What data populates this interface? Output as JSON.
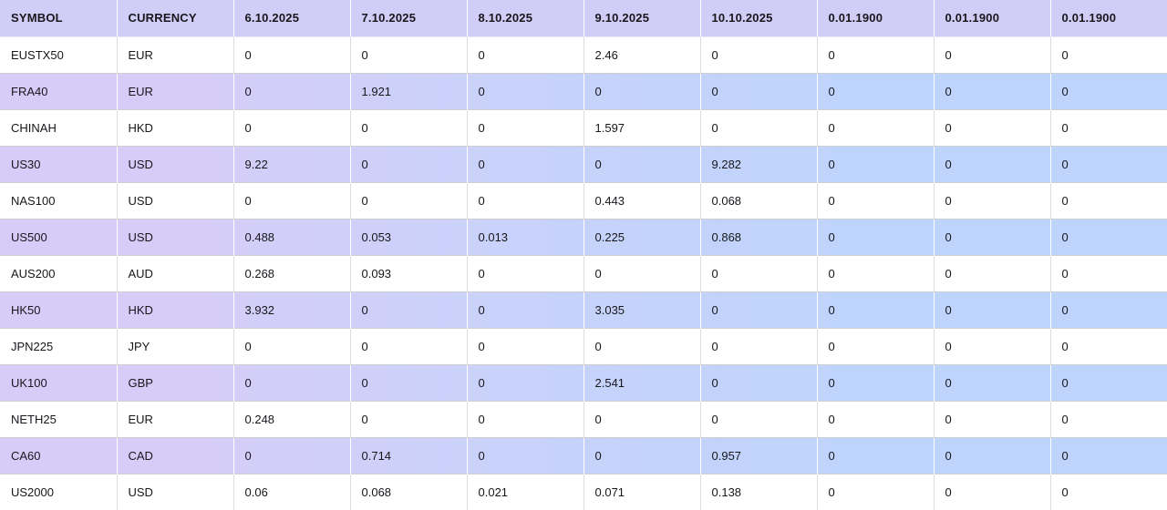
{
  "theme": {
    "header_bg": "#d2cdf7",
    "row_shade_left": "#d7ccf8",
    "row_shade_right": "#bfd4fc",
    "row_border": "#cfcfcf",
    "column_border": "#dcdcdc",
    "text_color": "#17171c"
  },
  "table": {
    "columns": [
      "SYMBOL",
      "CURRENCY",
      "6.10.2025",
      "7.10.2025",
      "8.10.2025",
      "9.10.2025",
      "10.10.2025",
      "0.01.1900",
      "0.01.1900",
      "0.01.1900"
    ],
    "rows": [
      {
        "symbol": "EUSTX50",
        "currency": "EUR",
        "values": [
          "0",
          "0",
          "0",
          "2.46",
          "0",
          "0",
          "0",
          "0"
        ]
      },
      {
        "symbol": "FRA40",
        "currency": "EUR",
        "values": [
          "0",
          "1.921",
          "0",
          "0",
          "0",
          "0",
          "0",
          "0"
        ]
      },
      {
        "symbol": "CHINAH",
        "currency": "HKD",
        "values": [
          "0",
          "0",
          "0",
          "1.597",
          "0",
          "0",
          "0",
          "0"
        ]
      },
      {
        "symbol": "US30",
        "currency": "USD",
        "values": [
          "9.22",
          "0",
          "0",
          "0",
          "9.282",
          "0",
          "0",
          "0"
        ]
      },
      {
        "symbol": "NAS100",
        "currency": "USD",
        "values": [
          "0",
          "0",
          "0",
          "0.443",
          "0.068",
          "0",
          "0",
          "0"
        ]
      },
      {
        "symbol": "US500",
        "currency": "USD",
        "values": [
          "0.488",
          "0.053",
          "0.013",
          "0.225",
          "0.868",
          "0",
          "0",
          "0"
        ]
      },
      {
        "symbol": "AUS200",
        "currency": "AUD",
        "values": [
          "0.268",
          "0.093",
          "0",
          "0",
          "0",
          "0",
          "0",
          "0"
        ]
      },
      {
        "symbol": "HK50",
        "currency": "HKD",
        "values": [
          "3.932",
          "0",
          "0",
          "3.035",
          "0",
          "0",
          "0",
          "0"
        ]
      },
      {
        "symbol": "JPN225",
        "currency": "JPY",
        "values": [
          "0",
          "0",
          "0",
          "0",
          "0",
          "0",
          "0",
          "0"
        ]
      },
      {
        "symbol": "UK100",
        "currency": "GBP",
        "values": [
          "0",
          "0",
          "0",
          "2.541",
          "0",
          "0",
          "0",
          "0"
        ]
      },
      {
        "symbol": "NETH25",
        "currency": "EUR",
        "values": [
          "0.248",
          "0",
          "0",
          "0",
          "0",
          "0",
          "0",
          "0"
        ]
      },
      {
        "symbol": "CA60",
        "currency": "CAD",
        "values": [
          "0",
          "0.714",
          "0",
          "0",
          "0.957",
          "0",
          "0",
          "0"
        ]
      },
      {
        "symbol": "US2000",
        "currency": "USD",
        "values": [
          "0.06",
          "0.068",
          "0.021",
          "0.071",
          "0.138",
          "0",
          "0",
          "0"
        ]
      }
    ]
  }
}
